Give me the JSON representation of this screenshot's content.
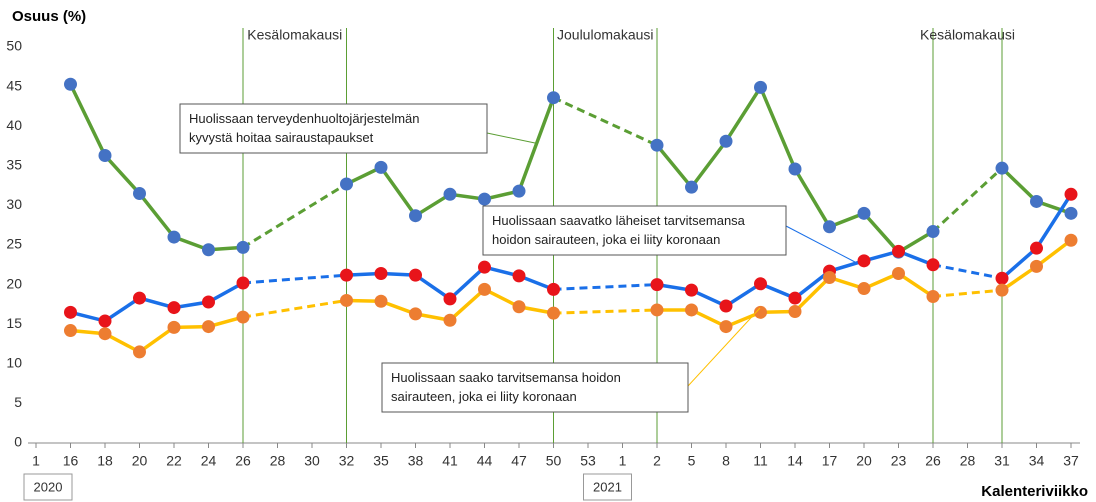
{
  "chart_data": {
    "type": "line",
    "y_label": "Osuus (%)",
    "x_label": "Kalenteriviikko",
    "categories": [
      "1",
      "16",
      "18",
      "20",
      "22",
      "24",
      "26",
      "28",
      "30",
      "32",
      "35",
      "38",
      "41",
      "44",
      "47",
      "50",
      "53",
      "1",
      "2",
      "5",
      "8",
      "11",
      "14",
      "17",
      "20",
      "23",
      "26",
      "28",
      "31",
      "34",
      "37"
    ],
    "years": [
      "2020",
      "2021"
    ],
    "periods": [
      "Kesälomakausi",
      "Joululomakausi",
      "Kesälomakausi"
    ],
    "ylim": [
      0,
      50
    ],
    "yticks": [
      0,
      5,
      10,
      15,
      20,
      25,
      30,
      35,
      40,
      45,
      50
    ],
    "series": [
      {
        "color": "#5b9e34",
        "marker": "#4472c4",
        "annotation": [
          "Huolissaan terveydenhuoltojärjestelmän",
          "kyvystä hoitaa sairaustapaukset"
        ],
        "values": [
          null,
          45.3,
          36.3,
          31.5,
          26.0,
          24.4,
          24.7,
          null,
          null,
          32.7,
          34.8,
          28.7,
          31.4,
          30.8,
          31.8,
          43.6,
          null,
          null,
          37.6,
          32.3,
          38.1,
          44.9,
          34.6,
          27.3,
          29.0,
          24.1,
          26.7,
          null,
          34.7,
          30.5,
          29.0
        ]
      },
      {
        "color": "#1a6fe8",
        "marker": "#e8141a",
        "annotation": [
          "Huolissaan saavatko läheiset tarvitsemansa",
          "hoidon sairauteen, joka ei liity koronaan"
        ],
        "values": [
          null,
          16.5,
          15.4,
          18.3,
          17.1,
          17.8,
          20.2,
          null,
          null,
          21.2,
          21.4,
          21.2,
          18.2,
          22.2,
          21.1,
          19.4,
          null,
          null,
          20.0,
          19.3,
          17.3,
          20.1,
          18.3,
          21.7,
          23.0,
          24.2,
          22.5,
          null,
          20.8,
          24.6,
          31.4
        ]
      },
      {
        "color": "#ffc000",
        "marker": "#ed7d31",
        "annotation": [
          "Huolissaan saako tarvitsemansa hoidon",
          "sairauteen, joka ei liity koronaan"
        ],
        "values": [
          null,
          14.2,
          13.8,
          11.5,
          14.6,
          14.7,
          15.9,
          null,
          null,
          18.0,
          17.9,
          16.3,
          15.5,
          19.4,
          17.2,
          16.4,
          null,
          null,
          16.8,
          16.8,
          14.7,
          16.5,
          16.6,
          20.9,
          19.5,
          21.4,
          18.5,
          null,
          19.3,
          22.3,
          25.6
        ]
      }
    ]
  }
}
